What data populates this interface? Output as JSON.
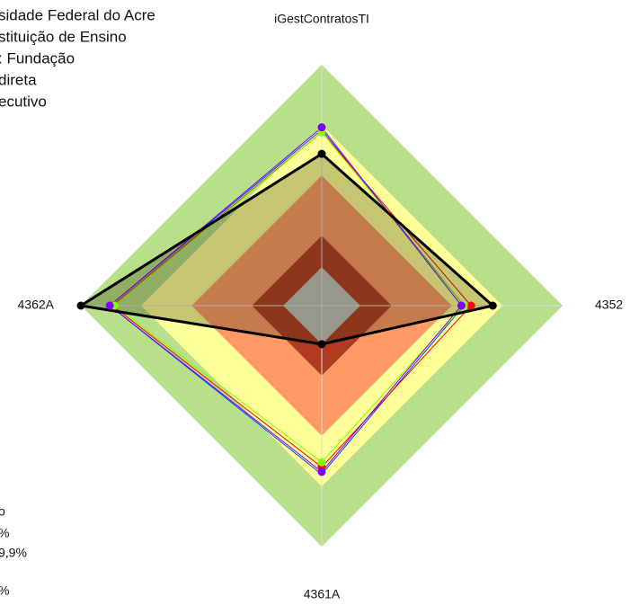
{
  "chart_data": {
    "type": "radar",
    "categories": [
      "iGestContratosTI",
      "4352",
      "4361A",
      "4362A"
    ],
    "rlim": [
      0,
      100
    ],
    "bands": [
      {
        "value": 100,
        "color": "#b8e08a"
      },
      {
        "value": 75,
        "color": "#ffff99"
      },
      {
        "value": 54,
        "color": "#ff9966"
      },
      {
        "value": 29,
        "color": "#b03a22"
      },
      {
        "value": 16,
        "color": "#c0c0c0"
      }
    ],
    "series": [
      {
        "color": "#0040ff",
        "width": 1,
        "points": false,
        "values": [
          73,
          59,
          70,
          88
        ]
      },
      {
        "color": "#ff0000",
        "width": 1,
        "points": true,
        "values": [
          72,
          62,
          67,
          87
        ]
      },
      {
        "color": "#80ff00",
        "width": 1,
        "points": true,
        "values": [
          72,
          59,
          65,
          86
        ]
      },
      {
        "color": "#8000ff",
        "width": 1,
        "points": true,
        "values": [
          74,
          58,
          69,
          88
        ]
      },
      {
        "color": "#000000",
        "width": 3,
        "points": true,
        "fill_opacity": 0.28,
        "values": [
          63,
          71,
          16,
          100
        ]
      }
    ],
    "top_left_text": [
      "sidade Federal do Acre",
      "stituição de Ensino",
      ": Fundação",
      "direta",
      "ecutivo"
    ],
    "bottom_left_text": [
      "o",
      "%",
      "9,9%",
      "%"
    ]
  }
}
